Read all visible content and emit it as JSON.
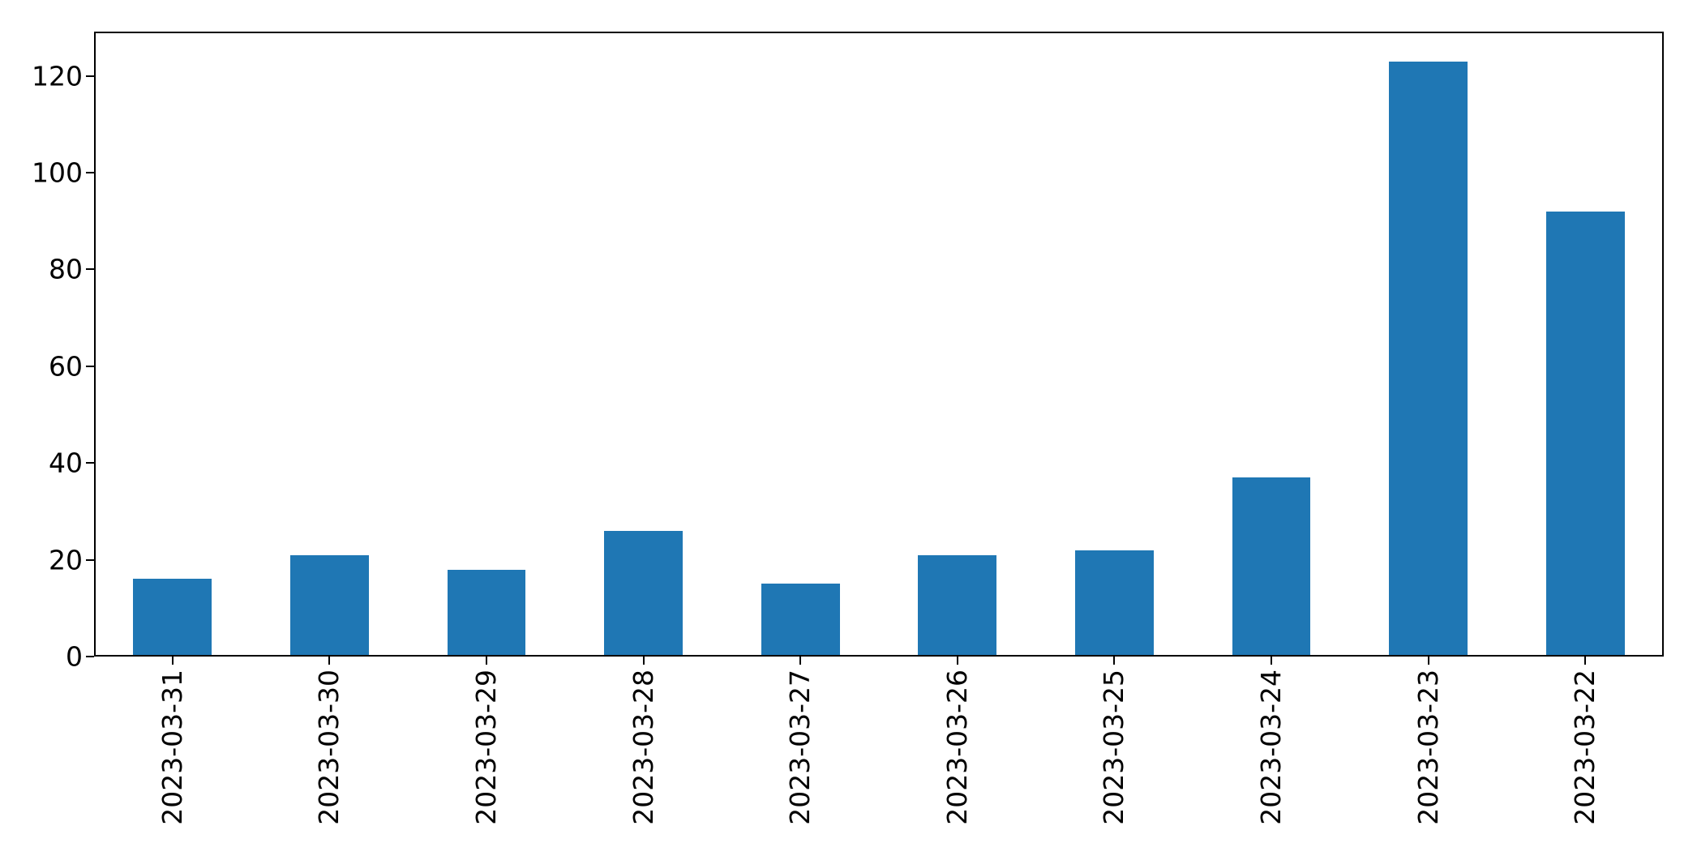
{
  "figure": {
    "background_color": "#ffffff",
    "axis_color": "#000000",
    "text_color": "#000000"
  },
  "chart_data": {
    "type": "bar",
    "title": "",
    "xlabel": "",
    "ylabel": "",
    "categories": [
      "2023-03-31",
      "2023-03-30",
      "2023-03-29",
      "2023-03-28",
      "2023-03-27",
      "2023-03-26",
      "2023-03-25",
      "2023-03-24",
      "2023-03-23",
      "2023-03-22"
    ],
    "values": [
      16,
      21,
      18,
      26,
      15,
      21,
      22,
      37,
      123,
      92
    ],
    "yticks": [
      0,
      20,
      40,
      60,
      80,
      100,
      120
    ],
    "ylim": [
      0,
      129.15
    ],
    "bar_color": "#1f77b4",
    "bar_width_fraction": 0.5,
    "x_tick_rotation": 90,
    "grid": false,
    "legend": false
  }
}
